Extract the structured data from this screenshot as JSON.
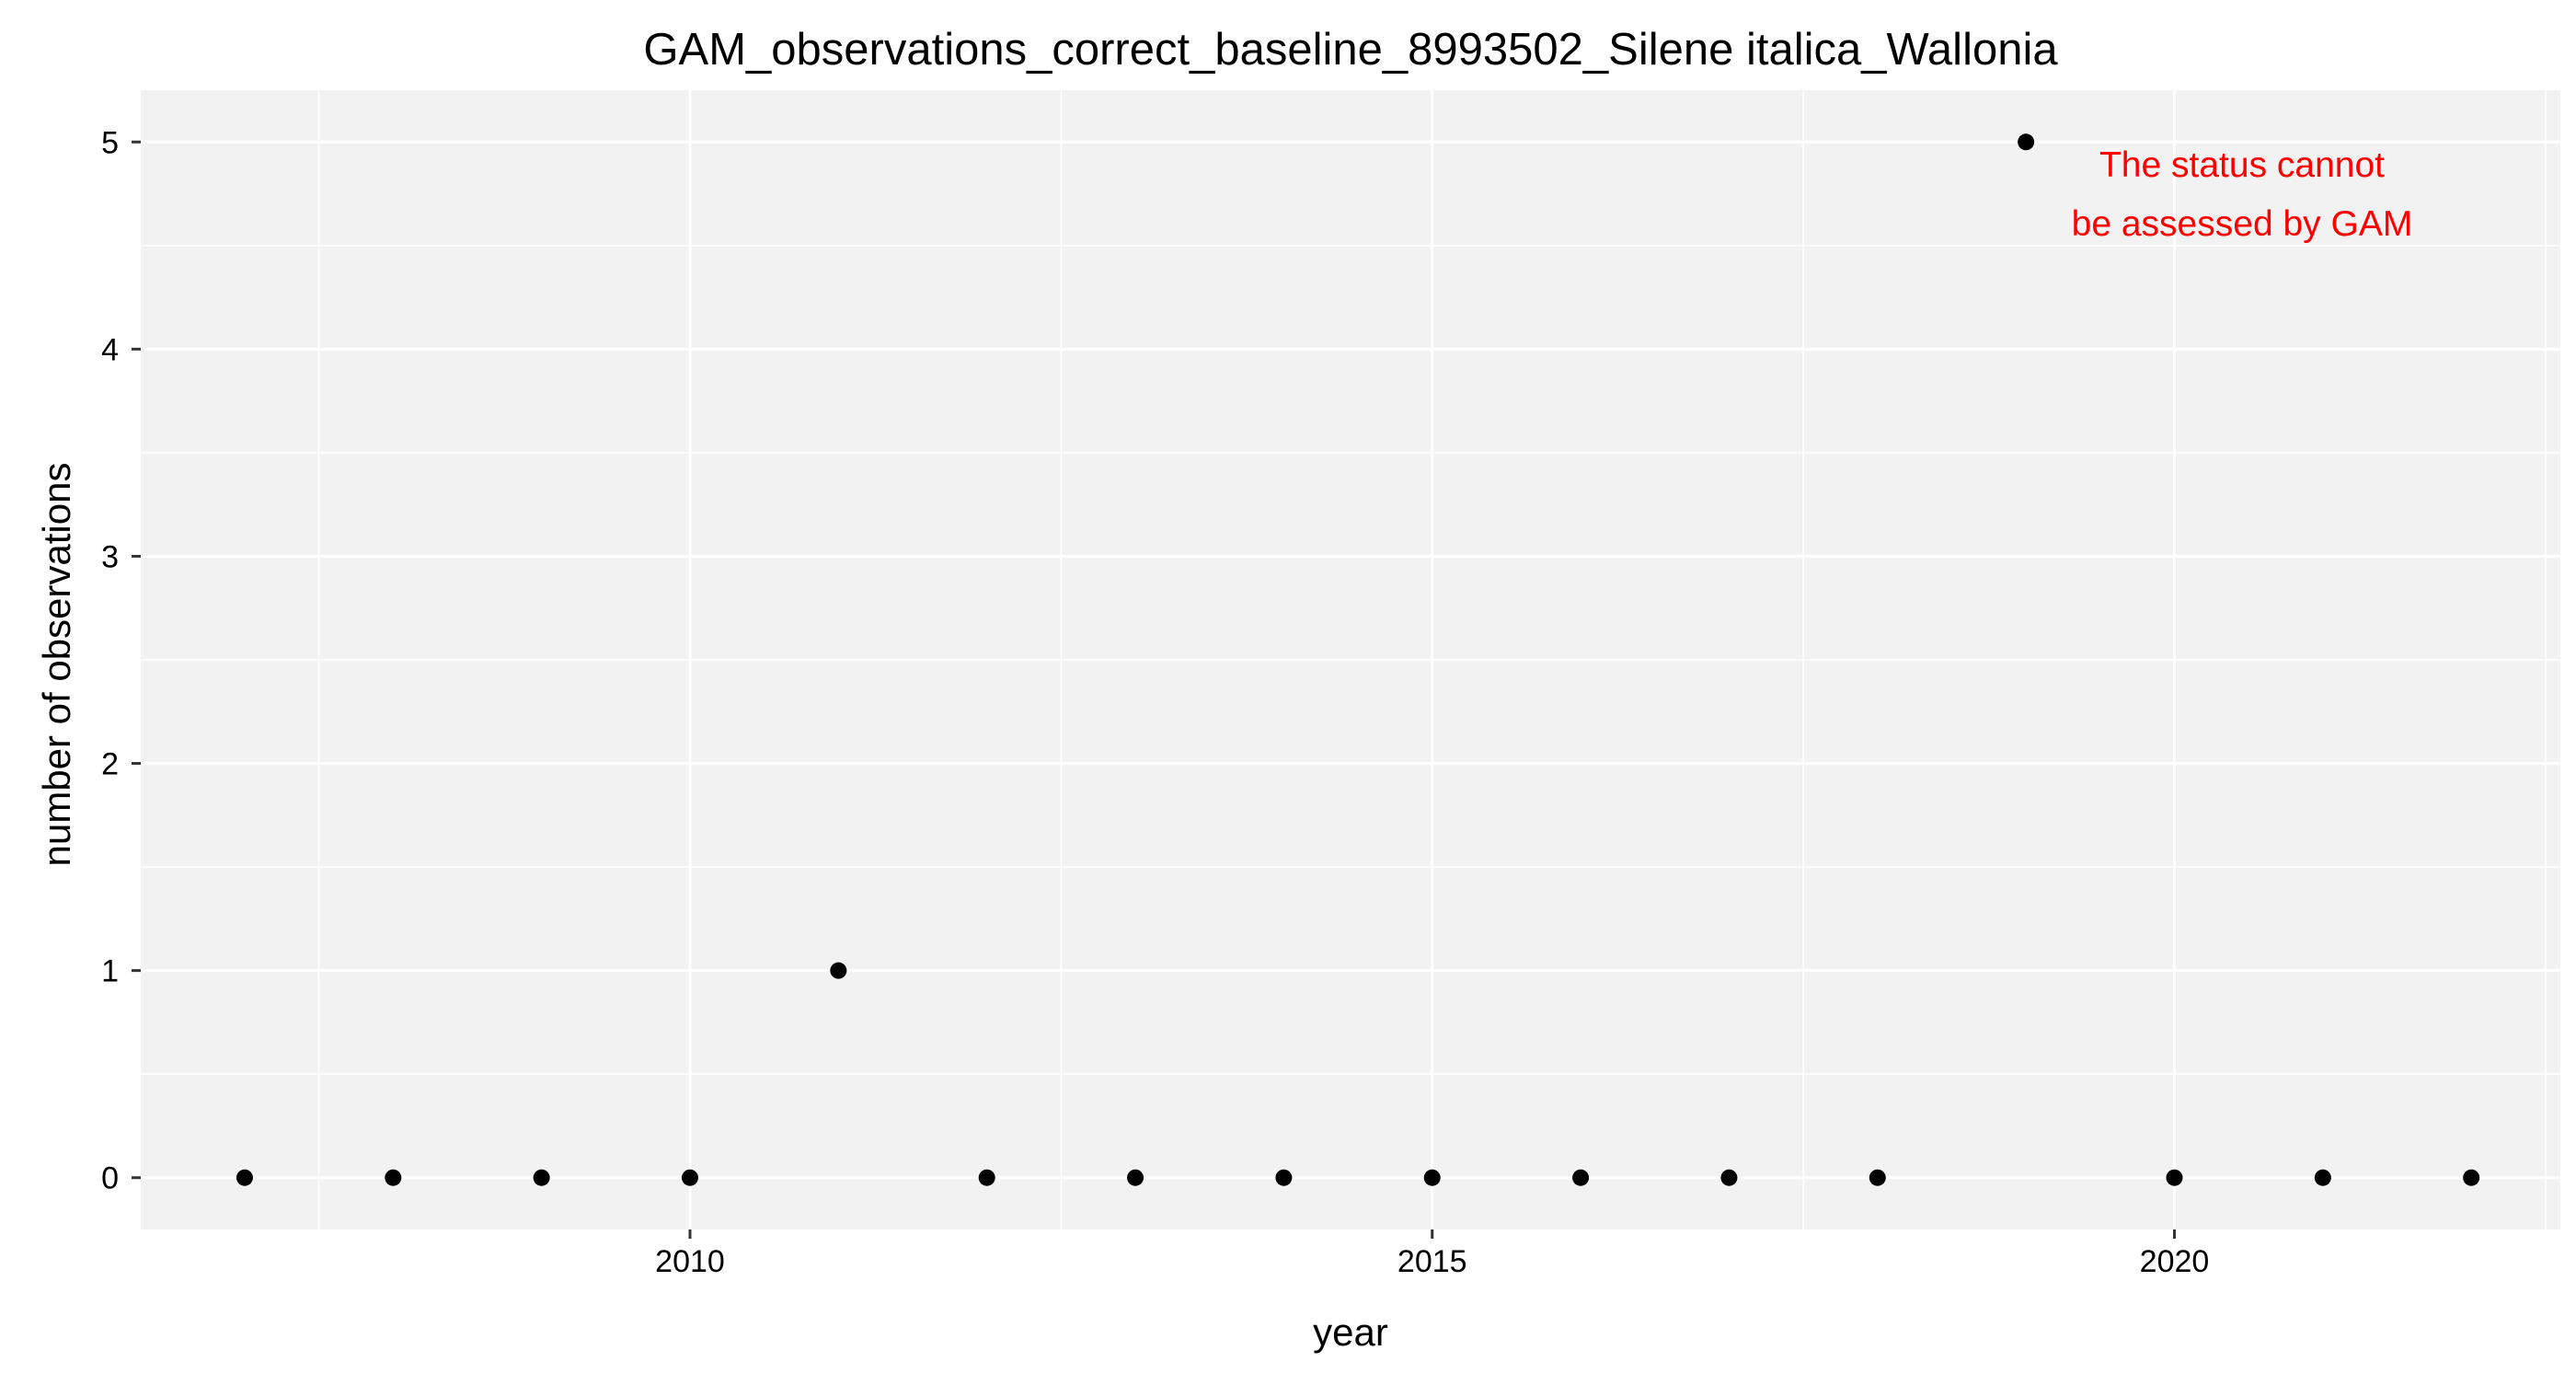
{
  "chart_data": {
    "type": "scatter",
    "title": "GAM_observations_correct_baseline_8993502_Silene italica_Wallonia",
    "xlabel": "year",
    "ylabel": "number of observations",
    "xlim": [
      2006.3,
      2022.6
    ],
    "ylim": [
      -0.25,
      5.25
    ],
    "x_ticks": [
      2010,
      2015,
      2020
    ],
    "x_minor_ticks": [
      2007.5,
      2012.5,
      2017.5,
      2022.5
    ],
    "y_ticks": [
      0,
      1,
      2,
      3,
      4,
      5
    ],
    "y_minor_ticks": [
      0.5,
      1.5,
      2.5,
      3.5,
      4.5
    ],
    "grid": true,
    "legend": "none",
    "colors": {
      "panel_background": "#f2f2f2",
      "grid": "#ffffff",
      "points": "#000000",
      "annotation": "#ff0000"
    },
    "points": [
      {
        "x": 2007,
        "y": 0
      },
      {
        "x": 2008,
        "y": 0
      },
      {
        "x": 2009,
        "y": 0
      },
      {
        "x": 2010,
        "y": 0
      },
      {
        "x": 2011,
        "y": 1
      },
      {
        "x": 2012,
        "y": 0
      },
      {
        "x": 2013,
        "y": 0
      },
      {
        "x": 2014,
        "y": 0
      },
      {
        "x": 2015,
        "y": 0
      },
      {
        "x": 2016,
        "y": 0
      },
      {
        "x": 2017,
        "y": 0
      },
      {
        "x": 2018,
        "y": 0
      },
      {
        "x": 2019,
        "y": 5
      },
      {
        "x": 2020,
        "y": 0
      },
      {
        "x": 2021,
        "y": 0
      },
      {
        "x": 2022,
        "y": 0
      }
    ],
    "annotation": {
      "lines": [
        "The status cannot",
        "be assessed by GAM"
      ]
    }
  }
}
